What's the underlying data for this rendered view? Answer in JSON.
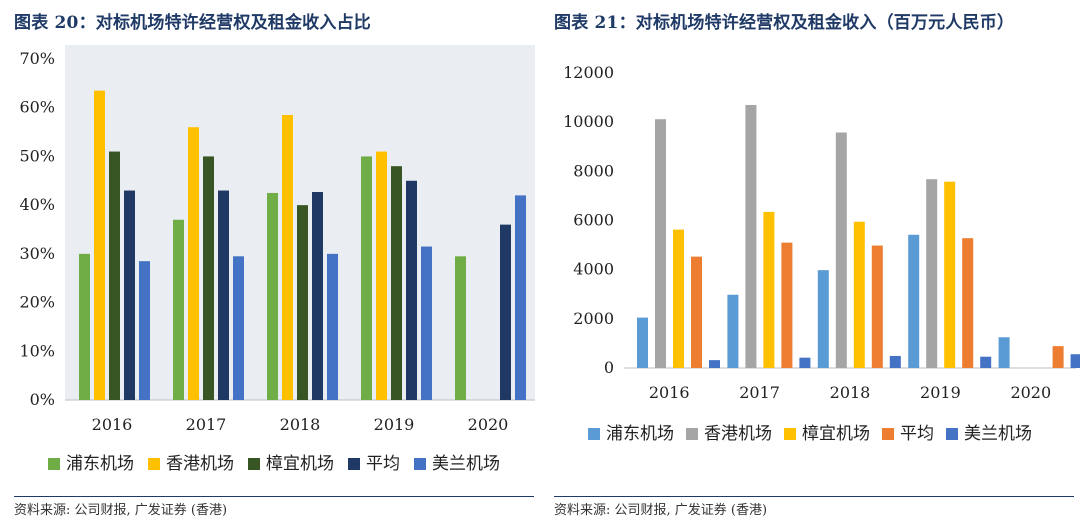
{
  "chart_data": [
    {
      "type": "bar",
      "title": "图表 20：对标机场特许经营权及租金收入占比",
      "categories": [
        "2016",
        "2017",
        "2018",
        "2019",
        "2020"
      ],
      "ylim": [
        0,
        70
      ],
      "yticks": [
        "0%",
        "10%",
        "20%",
        "30%",
        "40%",
        "50%",
        "60%",
        "70%"
      ],
      "ytick_values": [
        0,
        10,
        20,
        30,
        40,
        50,
        60,
        70
      ],
      "background": "#eaedf2",
      "legend_position": "bottom",
      "series": [
        {
          "name": "浦东机场",
          "color": "#70ad47",
          "values": [
            30,
            37,
            42.5,
            50,
            29.5
          ]
        },
        {
          "name": "香港机场",
          "color": "#ffc000",
          "values": [
            63.5,
            56,
            58.5,
            51,
            null
          ]
        },
        {
          "name": "樟宜机场",
          "color": "#375623",
          "values": [
            51,
            50,
            40,
            48,
            null
          ]
        },
        {
          "name": "平均",
          "color": "#1f3864",
          "values": [
            43,
            43,
            42.7,
            45,
            36
          ]
        },
        {
          "name": "美兰机场",
          "color": "#4472c4",
          "values": [
            28.5,
            29.5,
            30,
            31.5,
            42
          ]
        }
      ],
      "source": "资料来源: 公司财报, 广发证券 (香港)"
    },
    {
      "type": "bar",
      "title": "图表 21：对标机场特许经营权及租金收入（百万元人民币）",
      "categories": [
        "2016",
        "2017",
        "2018",
        "2019",
        "2020"
      ],
      "ylim": [
        0,
        12000
      ],
      "yticks": [
        "0",
        "2000",
        "4000",
        "6000",
        "8000",
        "10000",
        "12000"
      ],
      "ytick_values": [
        0,
        2000,
        4000,
        6000,
        8000,
        10000,
        12000
      ],
      "background": "#ffffff",
      "legend_position": "bottom",
      "series": [
        {
          "name": "浦东机场",
          "color": "#5b9bd5",
          "values": [
            2050,
            2980,
            3980,
            5420,
            1250
          ]
        },
        {
          "name": "香港机场",
          "color": "#a5a5a5",
          "values": [
            10120,
            10700,
            9580,
            7680,
            null
          ]
        },
        {
          "name": "樟宜机场",
          "color": "#ffc000",
          "values": [
            5630,
            6350,
            5950,
            7580,
            null
          ]
        },
        {
          "name": "平均",
          "color": "#ed7d31",
          "values": [
            4530,
            5100,
            4980,
            5280,
            890
          ]
        },
        {
          "name": "美兰机场",
          "color": "#4472c4",
          "values": [
            320,
            420,
            490,
            460,
            560
          ]
        }
      ],
      "source": "资料来源: 公司财报, 广发证券 (香港)"
    }
  ]
}
